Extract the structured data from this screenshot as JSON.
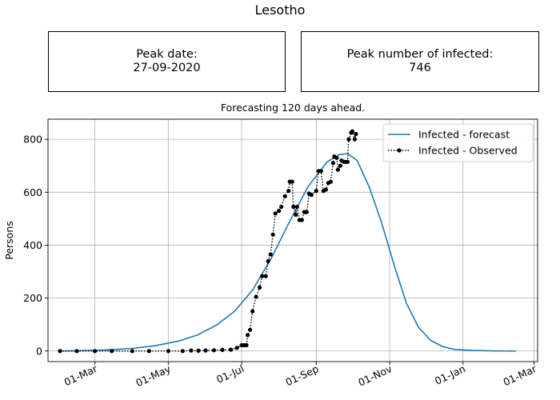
{
  "title": "Lesotho",
  "peak_date": {
    "label": "Peak date:",
    "value": "27-09-2020"
  },
  "peak_infected": {
    "label": "Peak number of infected:",
    "value": "746"
  },
  "subtitle": "Forecasting 120 days ahead.",
  "chart_data": {
    "type": "line",
    "ylabel": "Persons",
    "xlabel": "",
    "x_tick_labels": [
      "01-Mar",
      "01-May",
      "01-Jul",
      "01-Sep",
      "01-Nov",
      "01-Jan",
      "01-Mar"
    ],
    "x_tick_dates": [
      "2020-03-01",
      "2020-05-01",
      "2020-07-01",
      "2020-09-01",
      "2020-11-01",
      "2021-01-01",
      "2021-03-01"
    ],
    "y_ticks": [
      0,
      200,
      400,
      600,
      800
    ],
    "xlim": [
      "2020-01-22",
      "2021-03-04"
    ],
    "ylim": [
      -40,
      876
    ],
    "grid": true,
    "legend_position": "top-right",
    "series": [
      {
        "name": "Infected - forecast",
        "style": "solid",
        "color": "#1f77b4",
        "points": [
          [
            "2020-02-01",
            0
          ],
          [
            "2020-02-25",
            2
          ],
          [
            "2020-03-15",
            5
          ],
          [
            "2020-04-01",
            10
          ],
          [
            "2020-04-20",
            20
          ],
          [
            "2020-05-10",
            38
          ],
          [
            "2020-05-25",
            60
          ],
          [
            "2020-06-10",
            98
          ],
          [
            "2020-06-25",
            150
          ],
          [
            "2020-07-10",
            230
          ],
          [
            "2020-07-25",
            345
          ],
          [
            "2020-08-10",
            490
          ],
          [
            "2020-08-25",
            620
          ],
          [
            "2020-09-10",
            715
          ],
          [
            "2020-09-20",
            742
          ],
          [
            "2020-09-27",
            746
          ],
          [
            "2020-10-05",
            720
          ],
          [
            "2020-10-15",
            620
          ],
          [
            "2020-10-25",
            490
          ],
          [
            "2020-11-05",
            320
          ],
          [
            "2020-11-15",
            180
          ],
          [
            "2020-11-25",
            90
          ],
          [
            "2020-12-05",
            40
          ],
          [
            "2020-12-15",
            17
          ],
          [
            "2020-12-25",
            6
          ],
          [
            "2021-01-10",
            2
          ],
          [
            "2021-01-25",
            0.5
          ],
          [
            "2021-02-14",
            0
          ]
        ]
      },
      {
        "name": "Infected - Observed",
        "style": "dotted-markers",
        "color": "#000000",
        "points": [
          [
            "2020-02-01",
            0
          ],
          [
            "2020-02-15",
            0
          ],
          [
            "2020-03-01",
            0
          ],
          [
            "2020-03-15",
            0
          ],
          [
            "2020-04-01",
            0
          ],
          [
            "2020-04-15",
            0
          ],
          [
            "2020-05-01",
            0
          ],
          [
            "2020-05-13",
            0
          ],
          [
            "2020-05-20",
            2
          ],
          [
            "2020-05-26",
            1
          ],
          [
            "2020-06-01",
            2
          ],
          [
            "2020-06-08",
            3
          ],
          [
            "2020-06-15",
            4
          ],
          [
            "2020-06-22",
            5
          ],
          [
            "2020-06-27",
            12
          ],
          [
            "2020-07-01",
            22
          ],
          [
            "2020-07-03",
            22
          ],
          [
            "2020-07-05",
            22
          ],
          [
            "2020-07-06",
            60
          ],
          [
            "2020-07-08",
            80
          ],
          [
            "2020-07-10",
            150
          ],
          [
            "2020-07-13",
            205
          ],
          [
            "2020-07-16",
            240
          ],
          [
            "2020-07-18",
            283
          ],
          [
            "2020-07-21",
            283
          ],
          [
            "2020-07-23",
            340
          ],
          [
            "2020-07-25",
            365
          ],
          [
            "2020-07-27",
            440
          ],
          [
            "2020-07-29",
            520
          ],
          [
            "2020-08-01",
            530
          ],
          [
            "2020-08-03",
            545
          ],
          [
            "2020-08-06",
            585
          ],
          [
            "2020-08-09",
            605
          ],
          [
            "2020-08-10",
            640
          ],
          [
            "2020-08-12",
            640
          ],
          [
            "2020-08-13",
            545
          ],
          [
            "2020-08-15",
            515
          ],
          [
            "2020-08-16",
            545
          ],
          [
            "2020-08-18",
            495
          ],
          [
            "2020-08-20",
            495
          ],
          [
            "2020-08-22",
            525
          ],
          [
            "2020-08-24",
            525
          ],
          [
            "2020-08-26",
            595
          ],
          [
            "2020-08-28",
            590
          ],
          [
            "2020-09-01",
            605
          ],
          [
            "2020-09-03",
            680
          ],
          [
            "2020-09-05",
            680
          ],
          [
            "2020-09-07",
            605
          ],
          [
            "2020-09-09",
            610
          ],
          [
            "2020-09-11",
            635
          ],
          [
            "2020-09-13",
            640
          ],
          [
            "2020-09-15",
            710
          ],
          [
            "2020-09-16",
            735
          ],
          [
            "2020-09-18",
            730
          ],
          [
            "2020-09-19",
            685
          ],
          [
            "2020-09-21",
            700
          ],
          [
            "2020-09-22",
            720
          ],
          [
            "2020-09-24",
            715
          ],
          [
            "2020-09-25",
            715
          ],
          [
            "2020-09-27",
            715
          ],
          [
            "2020-09-28",
            800
          ],
          [
            "2020-09-30",
            825
          ],
          [
            "2020-10-01",
            830
          ],
          [
            "2020-10-03",
            800
          ],
          [
            "2020-10-04",
            820
          ]
        ]
      }
    ]
  }
}
